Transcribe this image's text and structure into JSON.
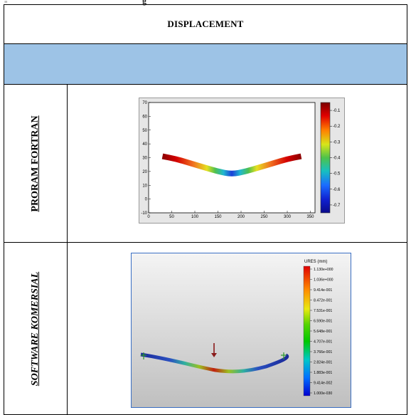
{
  "top_clip": "g",
  "corner_mark": "≡",
  "table": {
    "header": "DISPLACEMENT",
    "rows": [
      {
        "label": "PRORAM  FORTRAN"
      },
      {
        "label": "SOFTWARE  KOMERSIAL"
      }
    ]
  },
  "figure1": {
    "x_ticks": [
      "0",
      "50",
      "100",
      "150",
      "200",
      "250",
      "300",
      "350"
    ],
    "y_ticks": [
      "70",
      "60",
      "50",
      "40",
      "30",
      "20",
      "10",
      "0",
      "-10"
    ],
    "colorbar_ticks": [
      "-0.1",
      "-0.2",
      "-0.3",
      "-0.4",
      "-0.5",
      "-0.6",
      "-0.7"
    ],
    "chart_data": {
      "type": "line",
      "description_free": true,
      "x": [
        30,
        60,
        90,
        120,
        150,
        180,
        210,
        240,
        270,
        300,
        330
      ],
      "y": [
        31,
        29,
        26,
        23,
        20,
        18,
        20,
        23,
        26,
        29,
        31
      ],
      "xlim": [
        0,
        360
      ],
      "ylim": [
        -10,
        70
      ],
      "colorbar_range": [
        -0.75,
        -0.05
      ]
    }
  },
  "figure2": {
    "legend_title": "URES (mm)",
    "legend_values": [
      "1.130e+000",
      "1.036e+000",
      "9.414e-001",
      "8.472e-001",
      "7.531e-001",
      "6.590e-001",
      "5.648e-001",
      "4.707e-001",
      "3.766e-001",
      "2.824e-001",
      "1.883e-001",
      "9.414e-002",
      "1.000e-030"
    ]
  }
}
